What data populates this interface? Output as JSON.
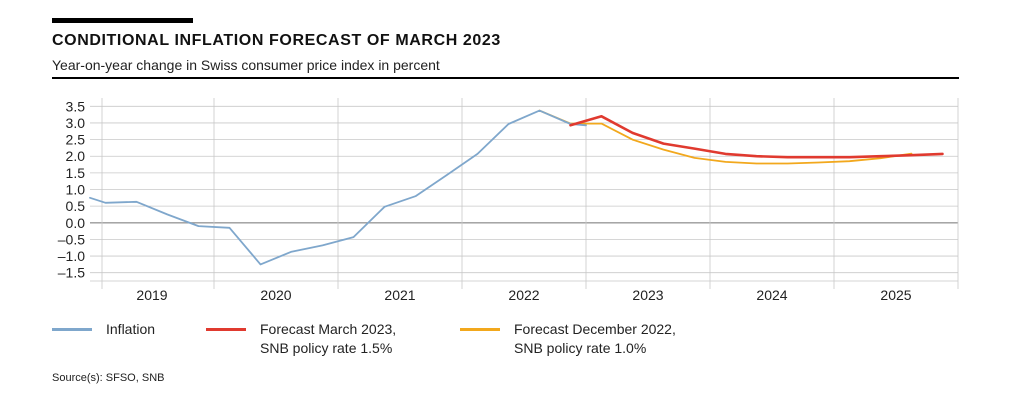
{
  "header": {
    "title": "CONDITIONAL INFLATION FORECAST OF MARCH 2023",
    "subtitle": "Year-on-year change in Swiss consumer price index in percent"
  },
  "source": "Source(s): SFSO, SNB",
  "colors": {
    "inflation": "#7fa7cc",
    "forecast_march_2023": "#e03a2f",
    "forecast_december_2022": "#f2a81d",
    "grid": "#c8c8c8",
    "zero_line": "#9a9a9a"
  },
  "chart_data": {
    "type": "line",
    "title": "CONDITIONAL INFLATION FORECAST OF MARCH 2023",
    "ylabel": "",
    "xlabel": "",
    "ylim": [
      -1.75,
      3.75
    ],
    "xlim": [
      2018.5,
      2025.5
    ],
    "grid": true,
    "legend_position": "bottom",
    "y_ticks": [
      "3.5",
      "3.0",
      "2.5",
      "2.0",
      "1.5",
      "1.0",
      "0.5",
      "0.0",
      "–0.5",
      "–1.0",
      "–1.5"
    ],
    "x_tick_labels": [
      "2019",
      "2020",
      "2021",
      "2022",
      "2023",
      "2024",
      "2025"
    ],
    "series": [
      {
        "name": "Inflation",
        "color": "#7fa7cc",
        "x": [
          2018.5,
          2018.625,
          2018.875,
          2019.125,
          2019.375,
          2019.625,
          2019.875,
          2020.125,
          2020.375,
          2020.625,
          2020.875,
          2021.125,
          2021.375,
          2021.625,
          2021.875,
          2022.125,
          2022.375,
          2022.5
        ],
        "y": [
          0.75,
          0.6,
          0.63,
          0.25,
          -0.1,
          -0.15,
          -1.25,
          -0.87,
          -0.68,
          -0.43,
          0.48,
          0.8,
          1.43,
          2.07,
          2.97,
          3.37,
          2.97,
          2.93
        ]
      },
      {
        "name": "Forecast March 2023, SNB policy rate 1.5%",
        "color": "#e03a2f",
        "x": [
          2022.375,
          2022.625,
          2022.875,
          2023.125,
          2023.375,
          2023.625,
          2023.875,
          2024.125,
          2024.375,
          2024.625,
          2024.875,
          2025.125,
          2025.375
        ],
        "y": [
          2.93,
          3.2,
          2.7,
          2.38,
          2.23,
          2.07,
          2.0,
          1.97,
          1.97,
          1.97,
          2.0,
          2.03,
          2.07
        ]
      },
      {
        "name": "Forecast December 2022, SNB policy rate 1.0%",
        "color": "#f2a81d",
        "x": [
          2022.125,
          2022.375,
          2022.625,
          2022.875,
          2023.125,
          2023.375,
          2023.625,
          2023.875,
          2024.125,
          2024.375,
          2024.625,
          2024.875,
          2025.125
        ],
        "y": [
          3.37,
          2.98,
          2.98,
          2.5,
          2.2,
          1.95,
          1.83,
          1.78,
          1.78,
          1.81,
          1.85,
          1.94,
          2.08
        ]
      }
    ]
  },
  "legend": [
    {
      "line1": "Inflation",
      "line2": ""
    },
    {
      "line1": "Forecast March 2023,",
      "line2": "SNB policy rate 1.5%"
    },
    {
      "line1": "Forecast December 2022,",
      "line2": "SNB policy rate 1.0%"
    }
  ]
}
